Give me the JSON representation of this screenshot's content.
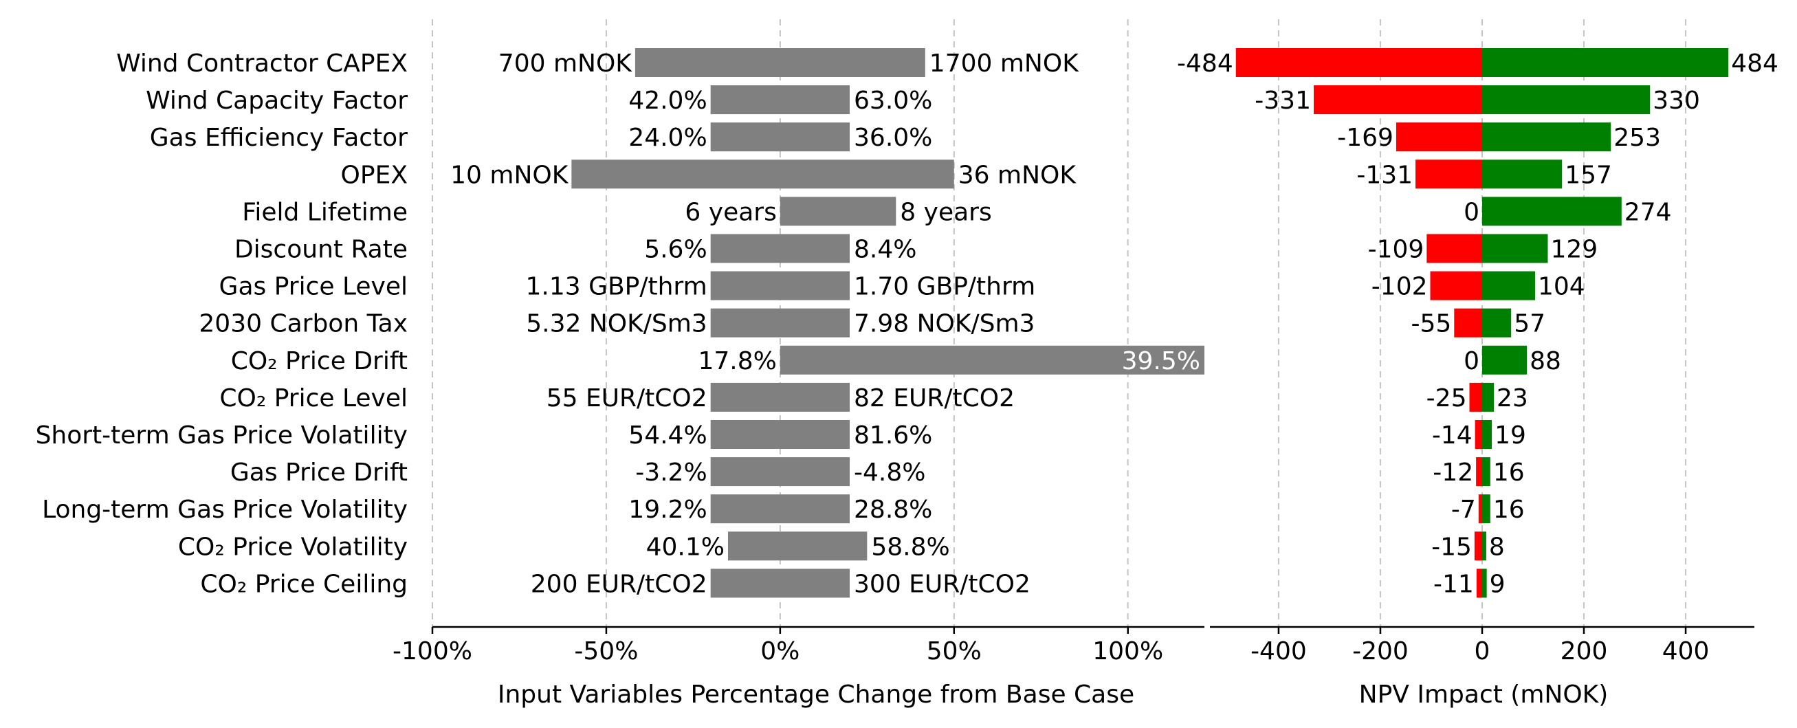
{
  "chart_data": [
    {
      "type": "bar",
      "orientation": "horizontal",
      "xlabel": "Input Variables Percentage Change from Base Case",
      "xlim": [
        -100,
        122
      ],
      "xticks": [
        -100,
        -50,
        0,
        50,
        100
      ],
      "xtick_labels": [
        "-100%",
        "-50%",
        "0%",
        "50%",
        "100%"
      ],
      "grid": "vertical dashed",
      "bar_color": "#808080",
      "categories": [
        "Wind Contractor CAPEX",
        "Wind Capacity Factor",
        "Gas Efficiency Factor",
        "OPEX",
        "Field Lifetime",
        "Discount Rate",
        "Gas Price Level",
        "2030 Carbon Tax",
        "CO₂ Price Drift",
        "CO₂ Price Level",
        "Short-term Gas Price Volatility",
        "Gas Price Drift",
        "Long-term Gas Price Volatility",
        "CO₂ Price Volatility",
        "CO₂ Price Ceiling"
      ],
      "low_pct": [
        -41.7,
        -20,
        -20,
        -60,
        0,
        -20,
        -20,
        -20,
        0,
        -20,
        -20,
        -20,
        -20,
        -15,
        -20
      ],
      "high_pct": [
        41.7,
        20,
        20,
        50,
        33.3,
        20,
        20,
        20,
        122,
        20,
        20,
        20,
        20,
        25,
        20
      ],
      "low_labels": [
        "700 mNOK",
        "42.0%",
        "24.0%",
        "10 mNOK",
        "6 years",
        "5.6%",
        "1.13 GBP/thrm",
        "5.32 NOK/Sm3",
        "17.8%",
        "55 EUR/tCO2",
        "54.4%",
        "-3.2%",
        "19.2%",
        "40.1%",
        "200 EUR/tCO2"
      ],
      "high_labels": [
        "1700 mNOK",
        "63.0%",
        "36.0%",
        "36 mNOK",
        "8 years",
        "8.4%",
        "1.70 GBP/thrm",
        "7.98 NOK/Sm3",
        "39.5%",
        "82 EUR/tCO2",
        "81.6%",
        "-4.8%",
        "28.8%",
        "58.8%",
        "300 EUR/tCO2"
      ]
    },
    {
      "type": "bar",
      "orientation": "horizontal",
      "xlabel": "NPV Impact (mNOK)",
      "xlim": [
        -535,
        535
      ],
      "xticks": [
        -400,
        -200,
        0,
        200,
        400
      ],
      "xtick_labels": [
        "-400",
        "-200",
        "0",
        "200",
        "400"
      ],
      "grid": "vertical dashed",
      "negative_color": "#ff0000",
      "positive_color": "#008000",
      "series": [
        {
          "values": [
            -484,
            -331,
            -169,
            -131,
            0,
            -109,
            -102,
            -55,
            0,
            -25,
            -14,
            -12,
            -7,
            -15,
            -11
          ]
        },
        {
          "values": [
            484,
            330,
            253,
            157,
            274,
            129,
            104,
            57,
            88,
            23,
            19,
            16,
            16,
            8,
            9
          ]
        }
      ]
    }
  ]
}
